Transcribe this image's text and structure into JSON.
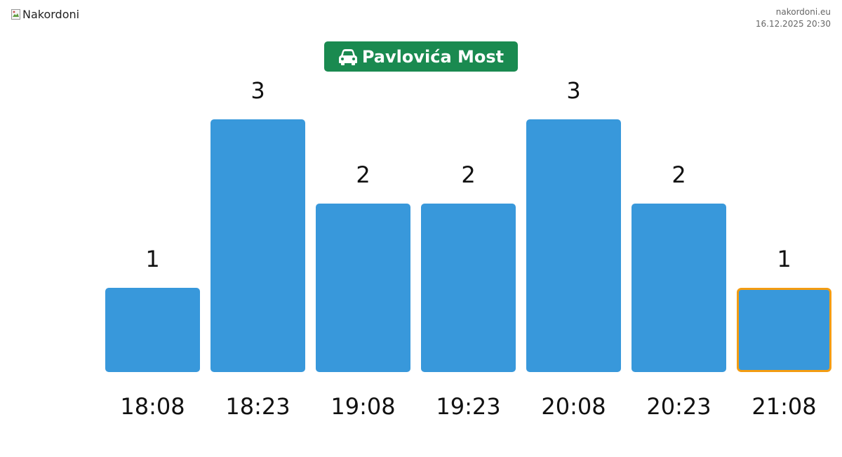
{
  "header": {
    "logo_alt": "Nakordoni",
    "site": "nakordoni.eu",
    "datetime": "16.12.2025 20:30"
  },
  "title": {
    "icon": "car-icon",
    "text": "Pavlovića Most"
  },
  "colors": {
    "bar": "#3898db",
    "highlight_border": "#f39c12",
    "badge": "#1a8a50"
  },
  "chart_data": {
    "type": "bar",
    "categories": [
      "18:08",
      "18:23",
      "19:08",
      "19:23",
      "20:08",
      "20:23",
      "21:08"
    ],
    "values": [
      1,
      3,
      2,
      2,
      3,
      2,
      1
    ],
    "ylim": [
      0,
      3
    ],
    "highlighted": "21:08",
    "grid": false,
    "legend": "none"
  }
}
